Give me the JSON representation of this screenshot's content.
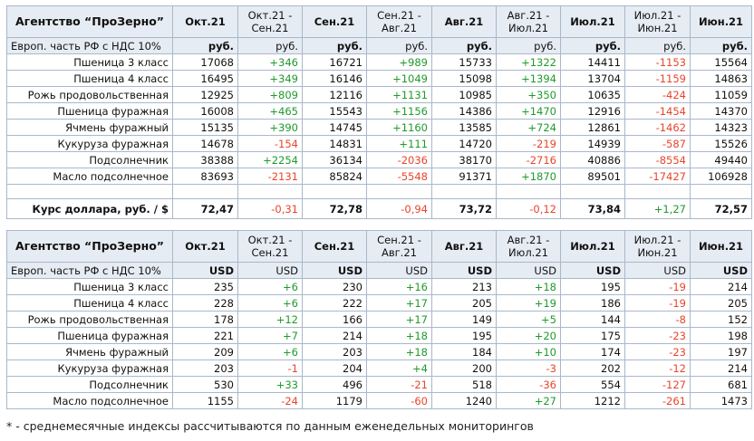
{
  "rub": {
    "agency": "Агентство “ПроЗерно”",
    "headers": [
      "Окт.21",
      "Окт.21 -\nСен.21",
      "Сен.21",
      "Сен.21 -\nАвг.21",
      "Авг.21",
      "Авг.21 -\nИюл.21",
      "Июл.21",
      "Июл.21 -\nИюн.21",
      "Июн.21"
    ],
    "unit_label": "Европ. часть РФ с НДС 10%",
    "units": [
      "руб.",
      "руб.",
      "руб.",
      "руб.",
      "руб.",
      "руб.",
      "руб.",
      "руб.",
      "руб."
    ],
    "rows": [
      {
        "name": "Пшеница 3 класс",
        "cells": [
          "17068",
          "+346",
          "16721",
          "+989",
          "15733",
          "+1322",
          "14411",
          "-1153",
          "15564"
        ]
      },
      {
        "name": "Пшеница 4 класс",
        "cells": [
          "16495",
          "+349",
          "16146",
          "+1049",
          "15098",
          "+1394",
          "13704",
          "-1159",
          "14863"
        ]
      },
      {
        "name": "Рожь продовольственная",
        "cells": [
          "12925",
          "+809",
          "12116",
          "+1131",
          "10985",
          "+350",
          "10635",
          "-424",
          "11059"
        ]
      },
      {
        "name": "Пшеница фуражная",
        "cells": [
          "16008",
          "+465",
          "15543",
          "+1156",
          "14386",
          "+1470",
          "12916",
          "-1454",
          "14370"
        ]
      },
      {
        "name": "Ячмень фуражный",
        "cells": [
          "15135",
          "+390",
          "14745",
          "+1160",
          "13585",
          "+724",
          "12861",
          "-1462",
          "14323"
        ]
      },
      {
        "name": "Кукуруза фуражная",
        "cells": [
          "14678",
          "-154",
          "14831",
          "+111",
          "14720",
          "-219",
          "14939",
          "-587",
          "15526"
        ]
      },
      {
        "name": "Подсолнечник",
        "cells": [
          "38388",
          "+2254",
          "36134",
          "-2036",
          "38170",
          "-2716",
          "40886",
          "-8554",
          "49440"
        ]
      },
      {
        "name": "Масло подсолнечное",
        "cells": [
          "83693",
          "-2131",
          "85824",
          "-5548",
          "91371",
          "+1870",
          "89501",
          "-17427",
          "106928"
        ]
      }
    ]
  },
  "rate": {
    "label": "Курс доллара, руб. / $",
    "cells": [
      "72,47",
      "-0,31",
      "72,78",
      "-0,94",
      "73,72",
      "-0,12",
      "73,84",
      "+1,27",
      "72,57"
    ]
  },
  "usd": {
    "agency": "Агентство “ПроЗерно”",
    "headers": [
      "Окт.21",
      "Окт.21 -\nСен.21",
      "Сен.21",
      "Сен.21 -\nАвг.21",
      "Авг.21",
      "Авг.21 -\nИюл.21",
      "Июл.21",
      "Июл.21 -\nИюн.21",
      "Июн.21"
    ],
    "unit_label": "Европ. часть РФ с НДС 10%",
    "units": [
      "USD",
      "USD",
      "USD",
      "USD",
      "USD",
      "USD",
      "USD",
      "USD",
      "USD"
    ],
    "rows": [
      {
        "name": "Пшеница 3 класс",
        "cells": [
          "235",
          "+6",
          "230",
          "+16",
          "213",
          "+18",
          "195",
          "-19",
          "214"
        ]
      },
      {
        "name": "Пшеница 4 класс",
        "cells": [
          "228",
          "+6",
          "222",
          "+17",
          "205",
          "+19",
          "186",
          "-19",
          "205"
        ]
      },
      {
        "name": "Рожь продовольственная",
        "cells": [
          "178",
          "+12",
          "166",
          "+17",
          "149",
          "+5",
          "144",
          "-8",
          "152"
        ]
      },
      {
        "name": "Пшеница фуражная",
        "cells": [
          "221",
          "+7",
          "214",
          "+18",
          "195",
          "+20",
          "175",
          "-23",
          "198"
        ]
      },
      {
        "name": "Ячмень фуражный",
        "cells": [
          "209",
          "+6",
          "203",
          "+18",
          "184",
          "+10",
          "174",
          "-23",
          "197"
        ]
      },
      {
        "name": "Кукуруза фуражная",
        "cells": [
          "203",
          "-1",
          "204",
          "+4",
          "200",
          "-3",
          "202",
          "-12",
          "214"
        ]
      },
      {
        "name": "Подсолнечник",
        "cells": [
          "530",
          "+33",
          "496",
          "-21",
          "518",
          "-36",
          "554",
          "-127",
          "681"
        ]
      },
      {
        "name": "Масло подсолнечное",
        "cells": [
          "1155",
          "-24",
          "1179",
          "-60",
          "1240",
          "+27",
          "1212",
          "-261",
          "1473"
        ]
      }
    ]
  },
  "footnote": "* - среднемесячные индексы рассчитываются по данным еженедельных мониторингов"
}
